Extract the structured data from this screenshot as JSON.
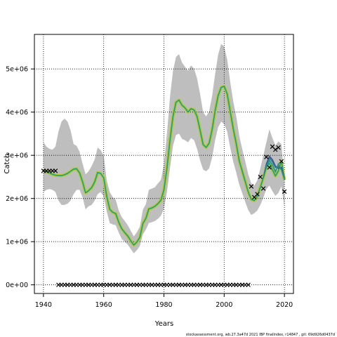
{
  "chart_data": {
    "type": "line",
    "title": "",
    "xlabel": "Years",
    "ylabel": "Catch",
    "xlim": [
      1937,
      2023
    ],
    "ylim": [
      -200000,
      5800000
    ],
    "grid": true,
    "x_ticks": [
      1940,
      1960,
      1980,
      2000,
      2020
    ],
    "x_tick_labels": [
      "1940",
      "1960",
      "1980",
      "2000",
      "2020"
    ],
    "y_ticks": [
      0,
      1000000,
      2000000,
      3000000,
      4000000,
      5000000
    ],
    "y_tick_labels": [
      "0e+00",
      "1e+06",
      "2e+06",
      "3e+06",
      "4e+06",
      "5e+06"
    ],
    "footer": "stockassessment.org, wb.27.3a47d 2021 IBP finalIndex, r14847 , git: 69d926d0437d",
    "colors": {
      "band": "#bebebe",
      "line_outer": "#b5c930",
      "line_inner": "#1a9d8d",
      "lines_recent": [
        "#3b528b",
        "#2c728e",
        "#21908d",
        "#5ec962"
      ],
      "marker": "#000000"
    },
    "series": [
      {
        "x": [
          1940,
          1941,
          1942,
          1943,
          1944,
          1945,
          1946,
          1947,
          1948,
          1949,
          1950,
          1951,
          1952,
          1953,
          1954,
          1955,
          1956,
          1957,
          1958,
          1959,
          1960,
          1961,
          1962,
          1963,
          1964,
          1965,
          1966,
          1967,
          1968,
          1969,
          1970,
          1971,
          1972,
          1973,
          1974,
          1975,
          1976,
          1977,
          1978,
          1979,
          1980,
          1981,
          1982,
          1983,
          1984,
          1985,
          1986,
          1987,
          1988,
          1989,
          1990,
          1991,
          1992,
          1993,
          1994,
          1995,
          1996,
          1997,
          1998,
          1999,
          2000,
          2001,
          2002,
          2003,
          2004,
          2005,
          2006,
          2007,
          2008,
          2009,
          2010,
          2011,
          2012,
          2013,
          2014,
          2015,
          2016,
          2017,
          2018,
          2019,
          2020
        ],
        "estimate": [
          2650000,
          2620000,
          2590000,
          2560000,
          2540000,
          2530000,
          2530000,
          2550000,
          2580000,
          2630000,
          2680000,
          2690000,
          2590000,
          2380000,
          2130000,
          2180000,
          2250000,
          2380000,
          2600000,
          2580000,
          2480000,
          2050000,
          1750000,
          1680000,
          1650000,
          1450000,
          1300000,
          1210000,
          1130000,
          1020000,
          920000,
          990000,
          1100000,
          1420000,
          1540000,
          1760000,
          1780000,
          1820000,
          1880000,
          1960000,
          2200000,
          2700000,
          3350000,
          3900000,
          4230000,
          4280000,
          4160000,
          4100000,
          4000000,
          4080000,
          4050000,
          3900000,
          3580000,
          3250000,
          3180000,
          3280000,
          3600000,
          4030000,
          4380000,
          4570000,
          4600000,
          4420000,
          4020000,
          3620000,
          3270000,
          2870000,
          2630000,
          2390000,
          2150000,
          1980000,
          1950000,
          2050000,
          2260000,
          2480000,
          2720000,
          2820000,
          2670000,
          2520000,
          2640000,
          2860000,
          2430000
        ],
        "lower": [
          2150000,
          2200000,
          2220000,
          2200000,
          2150000,
          1950000,
          1850000,
          1850000,
          1880000,
          1950000,
          2100000,
          2200000,
          2200000,
          2020000,
          1750000,
          1820000,
          1850000,
          1950000,
          2100000,
          2150000,
          2050000,
          1700000,
          1430000,
          1400000,
          1380000,
          1210000,
          1060000,
          1000000,
          930000,
          830000,
          730000,
          800000,
          900000,
          1170000,
          1280000,
          1430000,
          1450000,
          1480000,
          1530000,
          1600000,
          1760000,
          2150000,
          2700000,
          3220000,
          3470000,
          3500000,
          3380000,
          3350000,
          3300000,
          3400000,
          3350000,
          3150000,
          2880000,
          2670000,
          2630000,
          2700000,
          2950000,
          3350000,
          3650000,
          3780000,
          3720000,
          3550000,
          3180000,
          2850000,
          2600000,
          2320000,
          2120000,
          1920000,
          1730000,
          1620000,
          1660000,
          1720000,
          1850000,
          2020000,
          2220000,
          2300000,
          2170000,
          2060000,
          2130000,
          2280000,
          1800000
        ],
        "upper": [
          3300000,
          3200000,
          3150000,
          3130000,
          3200000,
          3550000,
          3780000,
          3850000,
          3780000,
          3580000,
          3260000,
          3220000,
          3080000,
          2800000,
          2560000,
          2630000,
          2750000,
          2900000,
          3180000,
          3120000,
          2980000,
          2420000,
          2150000,
          2030000,
          1970000,
          1720000,
          1570000,
          1480000,
          1380000,
          1250000,
          1120000,
          1220000,
          1350000,
          1740000,
          1870000,
          2200000,
          2230000,
          2260000,
          2350000,
          2430000,
          2800000,
          3500000,
          4350000,
          4950000,
          5280000,
          5340000,
          5150000,
          5050000,
          4960000,
          5080000,
          5010000,
          4780000,
          4420000,
          4000000,
          3900000,
          4020000,
          4380000,
          4880000,
          5330000,
          5580000,
          5520000,
          5220000,
          4700000,
          4250000,
          3900000,
          3450000,
          3140000,
          2860000,
          2560000,
          2350000,
          2300000,
          2420000,
          2700000,
          3000000,
          3300000,
          3600000,
          3400000,
          3230000,
          3320000,
          3260000,
          2400000
        ]
      },
      {
        "name": "",
        "x": [
          2013,
          2014,
          2015,
          2016,
          2017,
          2018,
          2019,
          2020
        ],
        "values": [
          2480000,
          2800000,
          2980000,
          2900000,
          2750000,
          2700000,
          2720000,
          2480000
        ]
      },
      {
        "name": "",
        "x": [
          2013,
          2014,
          2015,
          2016,
          2017,
          2018,
          2019,
          2020
        ],
        "values": [
          2480000,
          2760000,
          2940000,
          2850000,
          2720000,
          2740000,
          2680000,
          2470000
        ]
      },
      {
        "name": "",
        "x": [
          2013,
          2014,
          2015,
          2016,
          2017,
          2018,
          2019,
          2020
        ],
        "values": [
          2480000,
          2740000,
          2880000,
          2780000,
          2620000,
          2800000,
          2660000,
          2450000
        ]
      }
    ],
    "observed_points": [
      {
        "x": 1940,
        "y": 2640000
      },
      {
        "x": 1941,
        "y": 2640000
      },
      {
        "x": 1942,
        "y": 2640000
      },
      {
        "x": 1943,
        "y": 2640000
      },
      {
        "x": 1944,
        "y": 2640000
      },
      {
        "x": 2009,
        "y": 2280000
      },
      {
        "x": 2010,
        "y": 2030000
      },
      {
        "x": 2011,
        "y": 2100000
      },
      {
        "x": 2012,
        "y": 2500000
      },
      {
        "x": 2013,
        "y": 2230000
      },
      {
        "x": 2014,
        "y": 2960000
      },
      {
        "x": 2015,
        "y": 2720000
      },
      {
        "x": 2016,
        "y": 3200000
      },
      {
        "x": 2017,
        "y": 3130000
      },
      {
        "x": 2018,
        "y": 3180000
      },
      {
        "x": 2019,
        "y": 2860000
      },
      {
        "x": 2020,
        "y": 2160000
      }
    ],
    "zero_points_x_range": [
      1945,
      2008
    ]
  }
}
